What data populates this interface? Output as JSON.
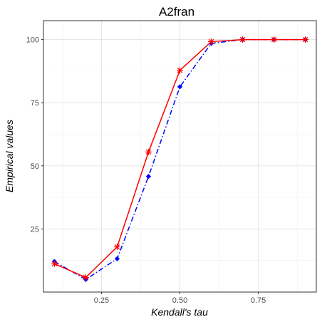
{
  "chart_data": {
    "type": "line",
    "title": "A2fran",
    "xlabel": "Kendall's tau",
    "ylabel": "Empirical values",
    "xlim": [
      0.065,
      0.935
    ],
    "ylim": [
      0,
      107.5
    ],
    "x_ticks": [
      0.25,
      0.5,
      0.75
    ],
    "x_tick_labels": [
      "0.25",
      "0.50",
      "0.75"
    ],
    "y_ticks": [
      25,
      50,
      75,
      100
    ],
    "y_tick_labels": [
      "25",
      "50",
      "75",
      "100"
    ],
    "grid": true,
    "legend": "none",
    "x": [
      0.1,
      0.2,
      0.3,
      0.4,
      0.5,
      0.6,
      0.7,
      0.8,
      0.9
    ],
    "series": [
      {
        "values": [
          11.2,
          5.8,
          17.9,
          55.5,
          87.8,
          99.2,
          100,
          100,
          100
        ],
        "color": "#ff0000",
        "line_style": "solid",
        "marker": "asterisk"
      },
      {
        "values": [
          12.1,
          5.0,
          13.2,
          45.8,
          81.3,
          98.5,
          100,
          100,
          100
        ],
        "color": "#0000ff",
        "line_style": "dashdot",
        "marker": "diamond"
      }
    ]
  }
}
